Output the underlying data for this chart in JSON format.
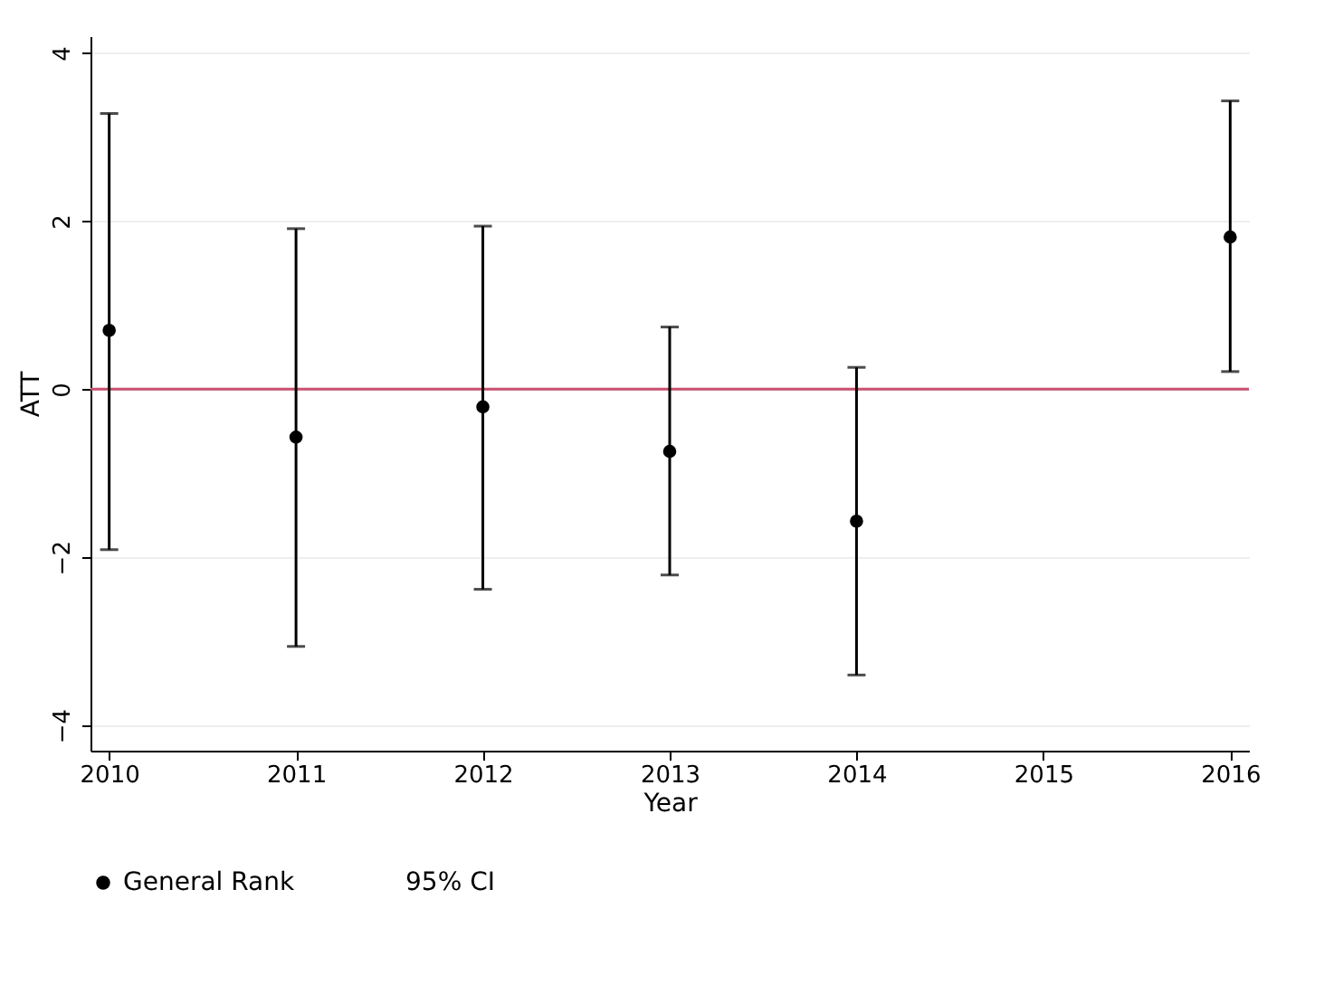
{
  "chart_data": {
    "type": "scatter",
    "xlabel": "Year",
    "ylabel": "ATT",
    "x": [
      2010,
      2011,
      2012,
      2013,
      2014,
      2016
    ],
    "series": [
      {
        "name": "General Rank",
        "color": "#000000",
        "values": [
          0.7,
          -0.57,
          -0.21,
          -0.74,
          -1.57,
          1.81
        ],
        "errors": [
          [
            -1.91,
            3.28
          ],
          [
            -3.06,
            1.91
          ],
          [
            -2.38,
            1.94
          ],
          [
            -2.21,
            0.74
          ],
          [
            -3.4,
            0.26
          ],
          [
            0.21,
            3.43
          ]
        ]
      }
    ],
    "annotations": [
      "95% CI"
    ],
    "xlim": [
      2009.9,
      2016.1
    ],
    "xticks": [
      2010,
      2011,
      2012,
      2013,
      2014,
      2015,
      2016
    ],
    "ylim": [
      -4.3,
      4.2
    ],
    "yticks": [
      -4,
      -2,
      0,
      2,
      4
    ],
    "grid": "y",
    "legend": "bottom",
    "marker": "circle",
    "ref_lines": [
      {
        "axis": "y",
        "value": 0,
        "color": "#c8506e"
      }
    ]
  }
}
